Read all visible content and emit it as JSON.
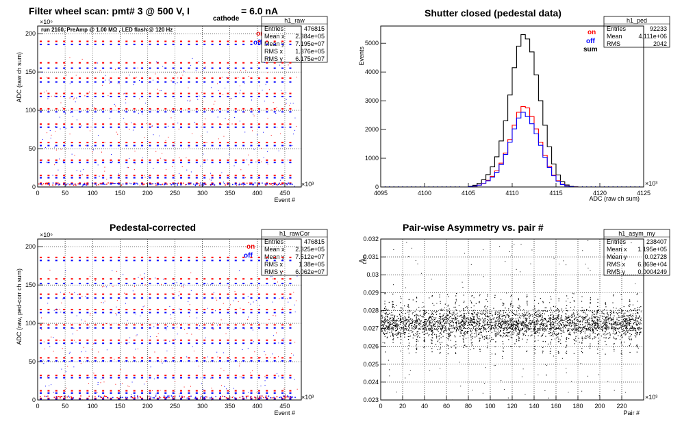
{
  "chart_data": [
    {
      "id": "raw",
      "type": "scatter",
      "title": "Filter wheel scan: pmt#   3 @   500 V, I",
      "title_sub": "cathode",
      "title_tail": "= 6.0 nA",
      "xlabel": "Event #",
      "ylabel": "ADC (raw ch sum)",
      "x_exponent": "×10³",
      "y_exponent": "×10⁶",
      "annotation": "run 2160, PreAmp @ 1.00 MΩ , LED flash @  120 Hz",
      "legend": [
        {
          "name": "on",
          "color": "#ff0000"
        },
        {
          "name": "off",
          "color": "#0000ff"
        }
      ],
      "xlim": [
        0,
        480
      ],
      "ylim": [
        0,
        210
      ],
      "grid": true,
      "x_ticks": [
        "0",
        "50",
        "100",
        "150",
        "200",
        "250",
        "300",
        "350",
        "400",
        "450"
      ],
      "y_ticks": [
        "0",
        "50",
        "100",
        "150",
        "200"
      ],
      "stats": {
        "name": "h1_raw",
        "rows": [
          [
            "Entries",
            "476815"
          ],
          [
            "Mean x",
            "2.384e+05"
          ],
          [
            "Mean y",
            "7.195e+07"
          ],
          [
            "RMS x",
            "1.376e+05"
          ],
          [
            "RMS y",
            "6.175e+07"
          ]
        ]
      },
      "levels": [
        {
          "on": 190,
          "off": 186
        },
        {
          "on": 162,
          "off": 155
        },
        {
          "on": 142,
          "off": 137
        },
        {
          "on": 122,
          "off": 118
        },
        {
          "on": 102,
          "off": 98
        },
        {
          "on": 82,
          "off": 78
        },
        {
          "on": 58,
          "off": 54
        },
        {
          "on": 35,
          "off": 32
        },
        {
          "on": 15,
          "off": 12
        },
        {
          "on": 5,
          "off": 4
        }
      ]
    },
    {
      "id": "ped",
      "type": "line",
      "title": "Shutter closed (pedestal data)",
      "xlabel": "ADC (raw ch sum)",
      "ylabel": "Events",
      "x_exponent": "×10³",
      "legend": [
        {
          "name": "on",
          "color": "#ff0000"
        },
        {
          "name": "off",
          "color": "#0000ff"
        },
        {
          "name": "sum",
          "color": "#000000"
        }
      ],
      "xlim": [
        4095,
        4125
      ],
      "ylim": [
        0,
        5600
      ],
      "grid": false,
      "x_ticks": [
        "4095",
        "4100",
        "4105",
        "4110",
        "4115",
        "4120",
        "4125"
      ],
      "y_ticks": [
        "0",
        "1000",
        "2000",
        "3000",
        "4000",
        "5000"
      ],
      "stats": {
        "name": "h1_ped",
        "rows": [
          [
            "Entries",
            "92233"
          ],
          [
            "Mean",
            "4.111e+06"
          ],
          [
            "RMS",
            "2042"
          ]
        ]
      },
      "x": [
        4105,
        4105.5,
        4106,
        4106.5,
        4107,
        4107.5,
        4108,
        4108.5,
        4109,
        4109.5,
        4110,
        4110.5,
        4111,
        4111.5,
        4112,
        4112.5,
        4113,
        4113.5,
        4114,
        4114.5,
        4115,
        4115.5,
        4116,
        4116.5,
        4117,
        4117.5
      ],
      "series": [
        {
          "name": "sum",
          "values": [
            20,
            60,
            130,
            250,
            430,
            700,
            1050,
            1600,
            2300,
            3200,
            4150,
            4900,
            5300,
            5150,
            4700,
            3900,
            3000,
            2150,
            1400,
            800,
            420,
            180,
            70,
            20,
            5,
            0
          ]
        },
        {
          "name": "on",
          "values": [
            10,
            30,
            65,
            130,
            230,
            370,
            560,
            830,
            1180,
            1650,
            2150,
            2600,
            2800,
            2750,
            2450,
            2020,
            1560,
            1100,
            720,
            410,
            215,
            95,
            38,
            10,
            3,
            0
          ]
        },
        {
          "name": "off",
          "values": [
            10,
            30,
            65,
            125,
            215,
            340,
            510,
            780,
            1130,
            1560,
            2020,
            2400,
            2600,
            2450,
            2200,
            1850,
            1450,
            1030,
            680,
            390,
            200,
            85,
            32,
            10,
            2,
            0
          ]
        }
      ]
    },
    {
      "id": "rawCor",
      "type": "scatter",
      "title": "Pedestal-corrected",
      "xlabel": "Event #",
      "ylabel": "ADC (raw, ped-corr ch sum)",
      "x_exponent": "×10³",
      "y_exponent": "×10⁶",
      "legend": [
        {
          "name": "on",
          "color": "#ff0000"
        },
        {
          "name": "off",
          "color": "#0000ff"
        }
      ],
      "xlim": [
        0,
        480
      ],
      "ylim": [
        0,
        210
      ],
      "grid": true,
      "x_ticks": [
        "0",
        "50",
        "100",
        "150",
        "200",
        "250",
        "300",
        "350",
        "400",
        "450"
      ],
      "y_ticks": [
        "0",
        "50",
        "100",
        "150",
        "200"
      ],
      "stats": {
        "name": "h1_rawCor",
        "rows": [
          [
            "Entries",
            "476815"
          ],
          [
            "Mean x",
            "2.325e+05"
          ],
          [
            "Mean y",
            "7.512e+07"
          ],
          [
            "RMS x",
            "1.38e+05"
          ],
          [
            "RMS y",
            "6.062e+07"
          ]
        ]
      },
      "levels": [
        {
          "on": 186,
          "off": 182
        },
        {
          "on": 158,
          "off": 152
        },
        {
          "on": 138,
          "off": 133
        },
        {
          "on": 118,
          "off": 114
        },
        {
          "on": 98,
          "off": 94
        },
        {
          "on": 78,
          "off": 74
        },
        {
          "on": 55,
          "off": 51
        },
        {
          "on": 32,
          "off": 29
        },
        {
          "on": 12,
          "off": 9
        },
        {
          "on": 2,
          "off": 1
        }
      ]
    },
    {
      "id": "asym",
      "type": "scatter",
      "title": "Pair-wise Asymmetry vs. pair #",
      "xlabel": "Pair #",
      "ylabel": "A",
      "ylabel_sub": "LED",
      "x_exponent": "×10³",
      "xlim": [
        0,
        240
      ],
      "ylim": [
        0.023,
        0.032
      ],
      "grid": true,
      "x_ticks": [
        "0",
        "20",
        "40",
        "60",
        "80",
        "100",
        "120",
        "140",
        "160",
        "180",
        "200",
        "220"
      ],
      "y_ticks": [
        "0.023",
        "0.024",
        "0.025",
        "0.026",
        "0.027",
        "0.028",
        "0.029",
        "0.03",
        "0.031",
        "0.032"
      ],
      "stats": {
        "name": "h1_asym_my",
        "rows": [
          [
            "Entries",
            "238407"
          ],
          [
            "Mean x",
            "1.195e+05"
          ],
          [
            "Mean y",
            "0.02728"
          ],
          [
            "RMS x",
            "6.869e+04"
          ],
          [
            "RMS y",
            "0.0004249"
          ]
        ]
      },
      "mean_y": 0.02728,
      "spread": 0.00045
    }
  ]
}
